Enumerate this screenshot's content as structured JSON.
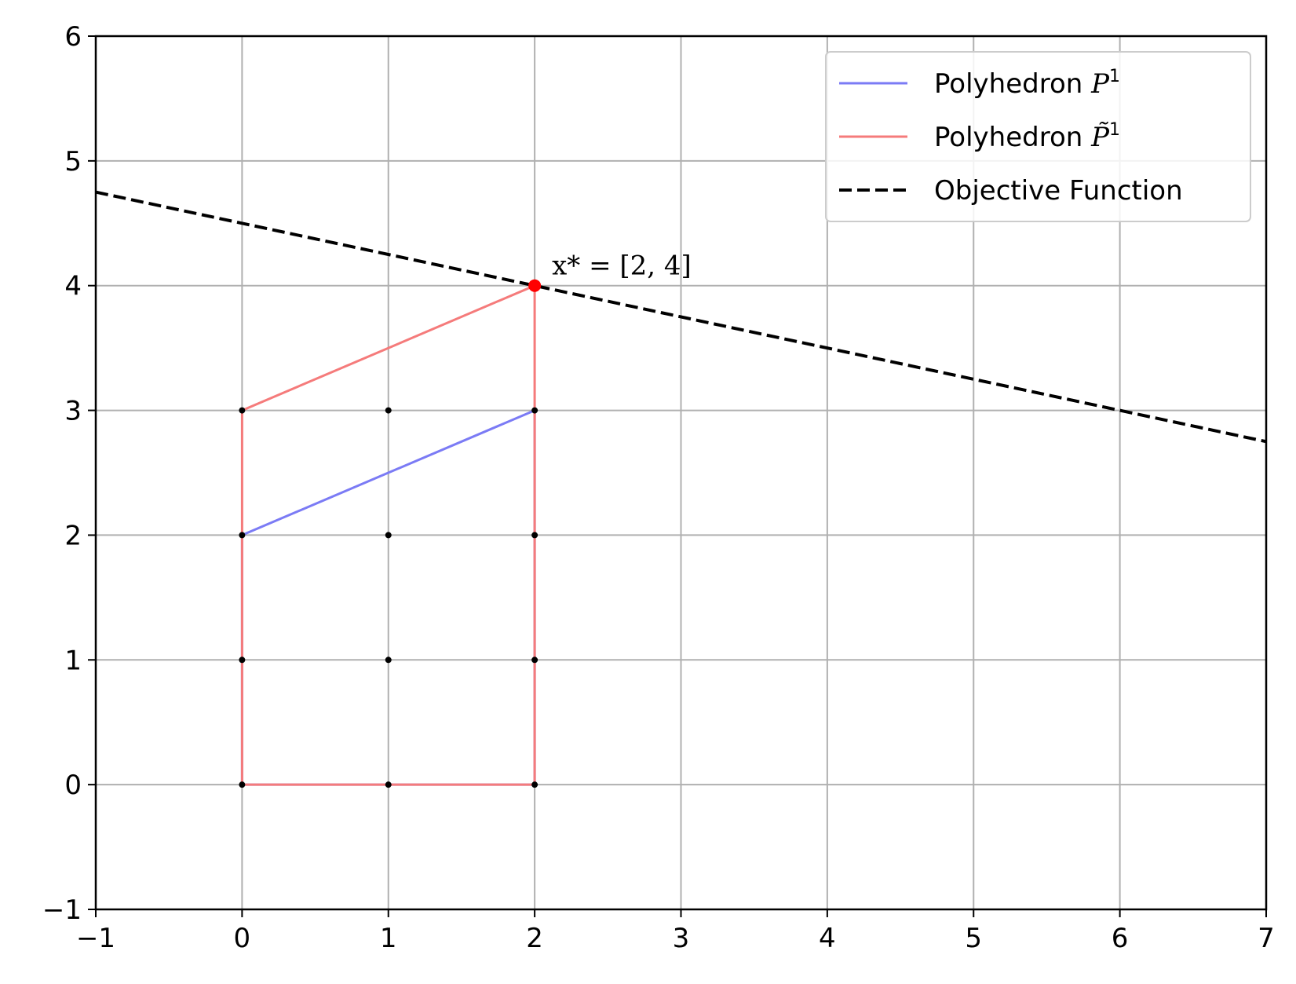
{
  "chart_data": {
    "type": "line",
    "xlim": [
      -1,
      7
    ],
    "ylim": [
      -1,
      6
    ],
    "xticks": [
      -1,
      0,
      1,
      2,
      3,
      4,
      5,
      6,
      7
    ],
    "yticks": [
      -1,
      0,
      1,
      2,
      3,
      4,
      5,
      6
    ],
    "xtick_labels": [
      "−1",
      "0",
      "1",
      "2",
      "3",
      "4",
      "5",
      "6",
      "7"
    ],
    "ytick_labels": [
      "−1",
      "0",
      "1",
      "2",
      "3",
      "4",
      "5",
      "6"
    ],
    "grid": true,
    "legend_position": "top-right",
    "series": [
      {
        "name": "Polyhedron P1",
        "legend_text": "Polyhedron ",
        "legend_math": "P",
        "legend_sup": "1",
        "color": "#7b7bf5",
        "style": "solid",
        "points": [
          [
            0,
            0
          ],
          [
            2,
            0
          ],
          [
            2,
            3
          ],
          [
            0,
            2
          ],
          [
            0,
            0
          ]
        ]
      },
      {
        "name": "Polyhedron P~1",
        "legend_text": "Polyhedron ",
        "legend_math": "P̃",
        "legend_sup": "1",
        "color": "#f57b7b",
        "style": "solid",
        "points": [
          [
            0,
            0
          ],
          [
            2,
            0
          ],
          [
            2,
            4
          ],
          [
            0,
            3
          ],
          [
            0,
            0
          ]
        ]
      },
      {
        "name": "Objective Function",
        "legend_text": "Objective Function",
        "color": "#000000",
        "style": "dashed",
        "points": [
          [
            -1,
            4.75
          ],
          [
            7,
            2.75
          ]
        ]
      }
    ],
    "lattice_points": [
      [
        0,
        0
      ],
      [
        1,
        0
      ],
      [
        2,
        0
      ],
      [
        0,
        1
      ],
      [
        1,
        1
      ],
      [
        2,
        1
      ],
      [
        0,
        2
      ],
      [
        1,
        2
      ],
      [
        2,
        2
      ],
      [
        0,
        3
      ],
      [
        1,
        3
      ],
      [
        2,
        3
      ]
    ],
    "optimum": {
      "x": 2,
      "y": 4,
      "label": "x* = [2, 4]",
      "color": "#ff0000"
    }
  }
}
